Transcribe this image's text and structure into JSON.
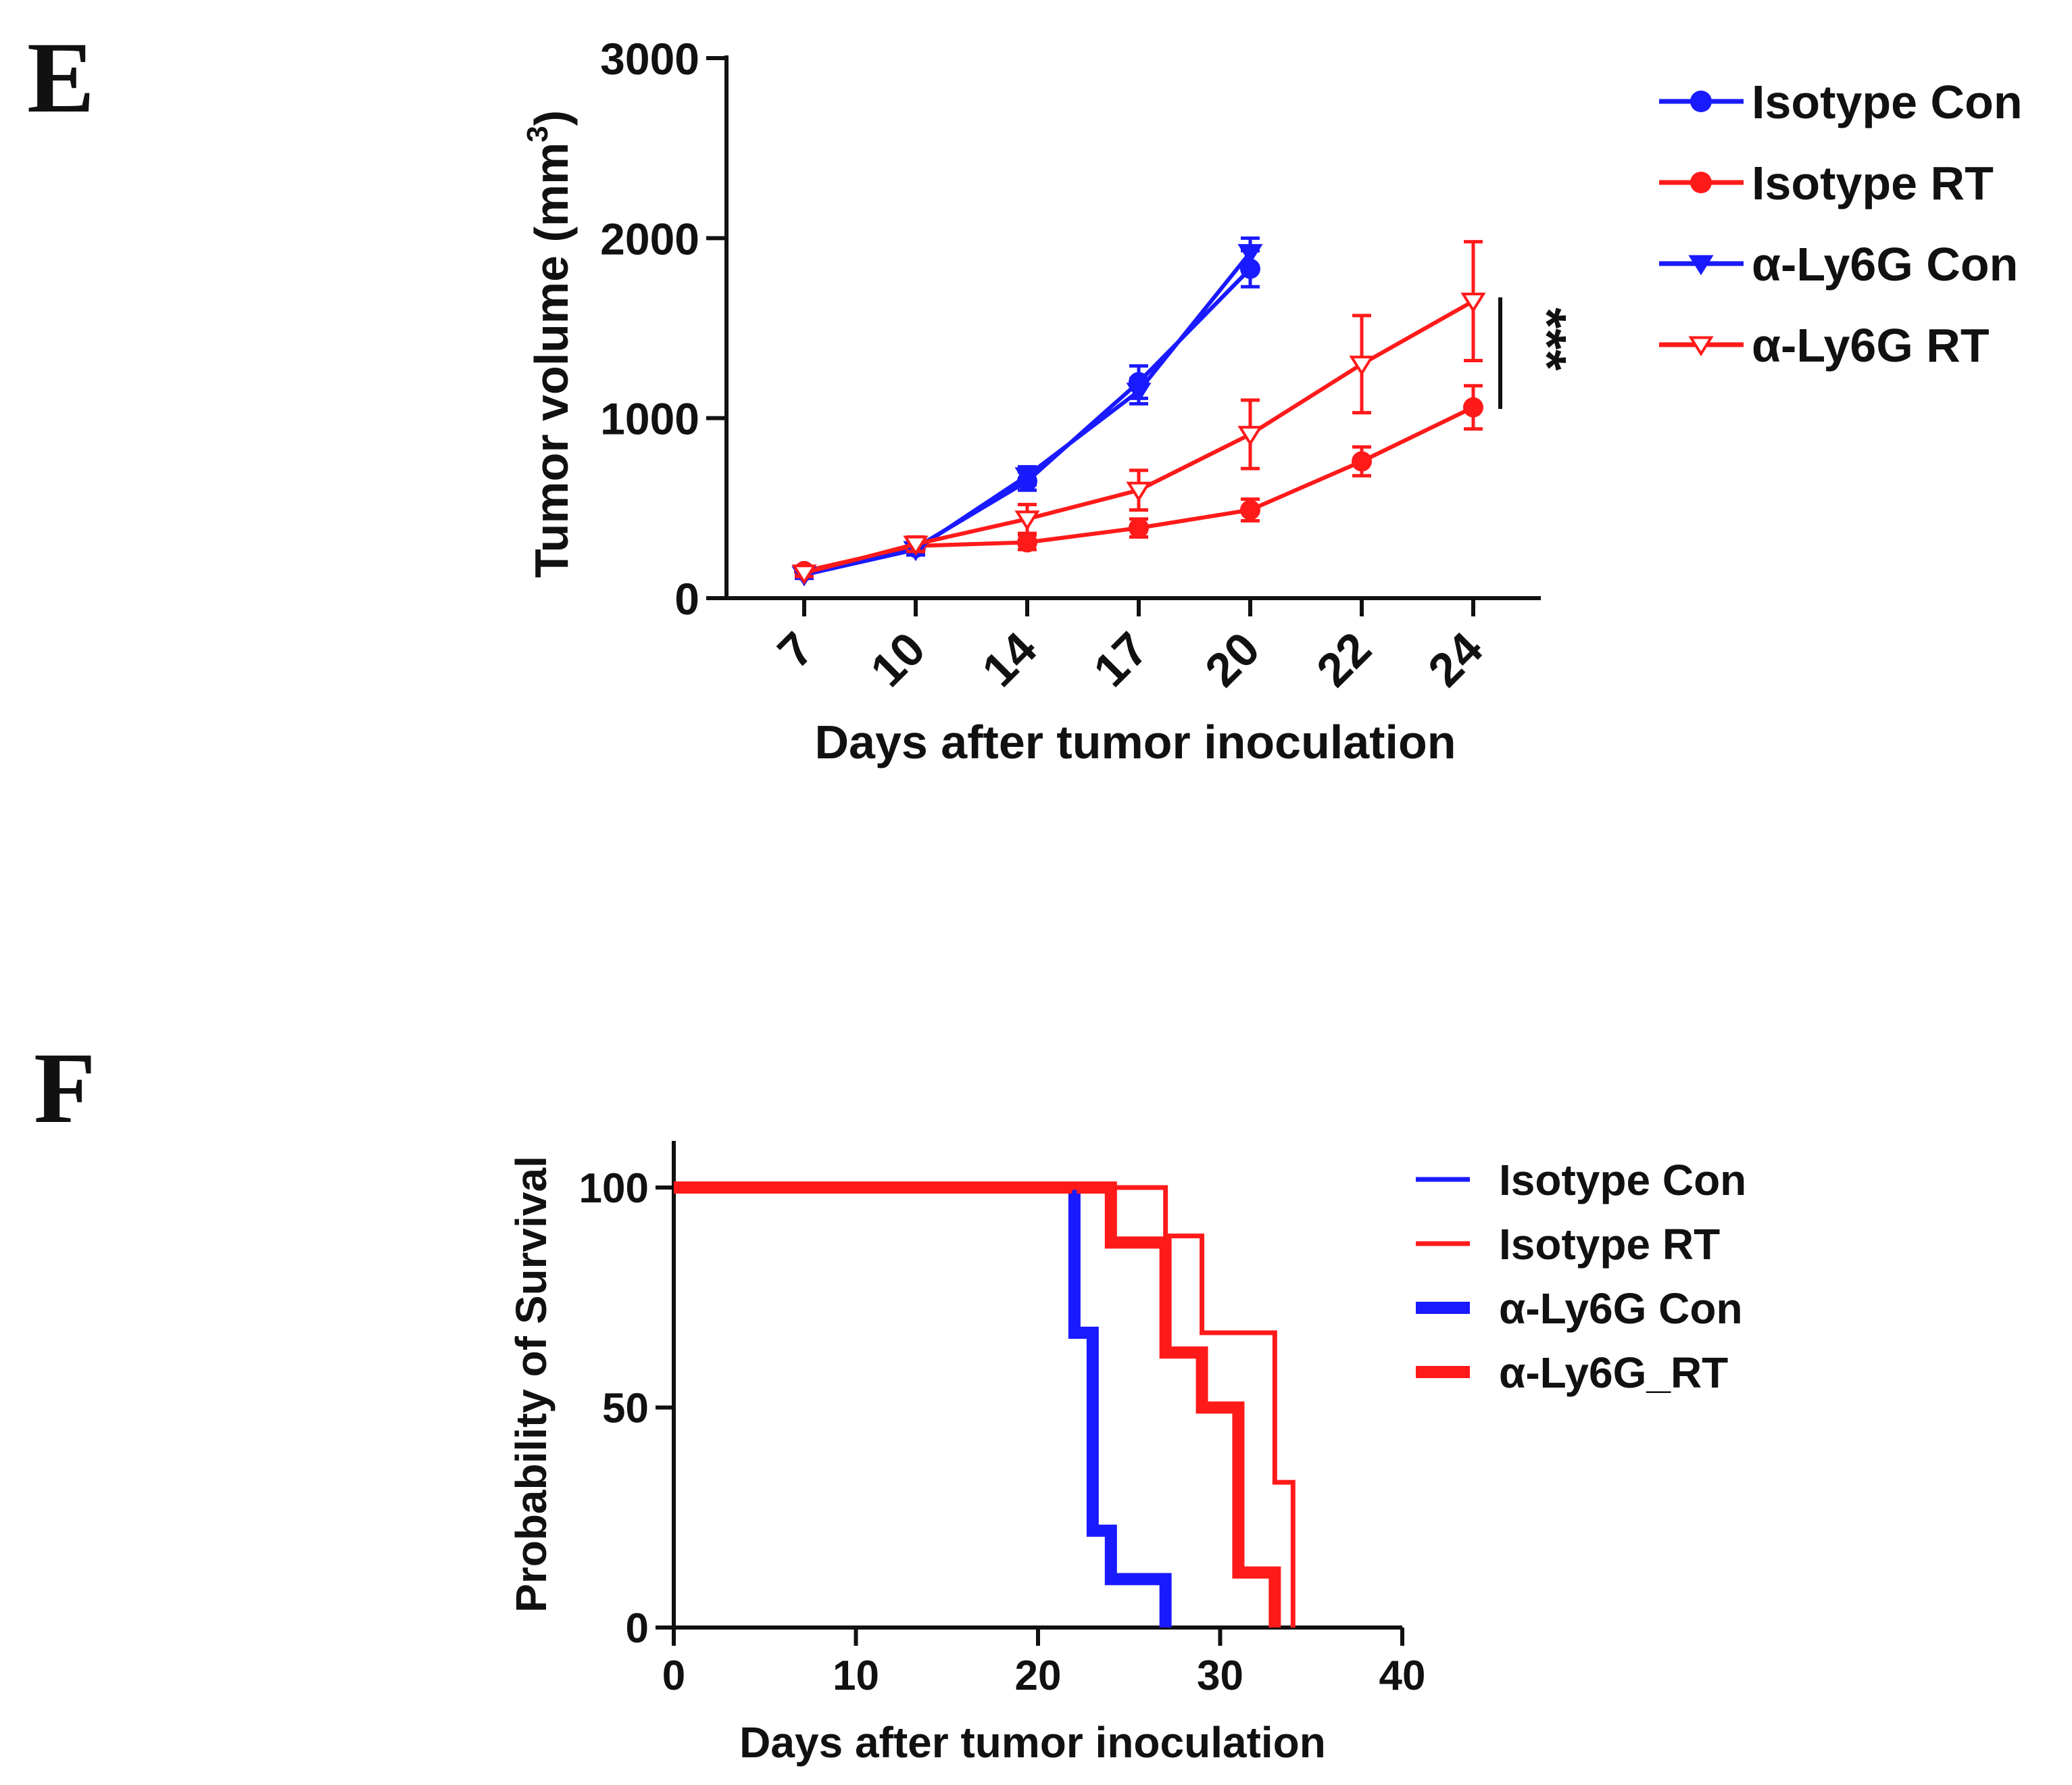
{
  "colors": {
    "blue": "#1a1aff",
    "red": "#ff1a1a",
    "axis": "#111111"
  },
  "chart_data": [
    {
      "panel": "E",
      "type": "line",
      "ylabel": "Tumor volume (mm",
      "ylabel_sup": "3",
      "ylabel_close": ")",
      "xlabel": "Days after tumor inoculation",
      "ylim": [
        0,
        3000
      ],
      "yticks": [
        "0",
        "1000",
        "2000",
        "3000"
      ],
      "ytick_values": [
        0,
        1000,
        2000,
        3000
      ],
      "categories": [
        "7",
        "10",
        "14",
        "17",
        "20",
        "22",
        "24"
      ],
      "significance": "***",
      "series": [
        {
          "name": "Isotype Con",
          "color": "#1a1aff",
          "marker": "circle",
          "values": [
            150,
            280,
            650,
            1200,
            1830,
            null,
            null
          ],
          "errors": [
            20,
            30,
            50,
            90,
            100,
            null,
            null
          ]
        },
        {
          "name": "Isotype RT",
          "color": "#ff1a1a",
          "marker": "circle",
          "values": [
            150,
            290,
            310,
            390,
            490,
            760,
            1060
          ],
          "errors": [
            20,
            40,
            40,
            50,
            60,
            80,
            120
          ]
        },
        {
          "name": "α-Ly6G Con",
          "color": "#1a1aff",
          "marker": "triangle-down",
          "values": [
            130,
            270,
            680,
            1150,
            1920,
            null,
            null
          ],
          "errors": [
            20,
            30,
            50,
            70,
            80,
            null,
            null
          ]
        },
        {
          "name": "α-Ly6G RT",
          "color": "#ff1a1a",
          "marker": "triangle-down-open",
          "values": [
            140,
            300,
            440,
            600,
            910,
            1300,
            1650
          ],
          "errors": [
            20,
            40,
            80,
            110,
            190,
            270,
            330
          ]
        }
      ]
    },
    {
      "panel": "F",
      "type": "line",
      "subtype": "survival-step",
      "ylabel": "Probability of Survival",
      "xlabel": "Days after tumor inoculation",
      "xlim": [
        0,
        40
      ],
      "ylim": [
        0,
        110
      ],
      "xticks": [
        "0",
        "10",
        "20",
        "30",
        "40"
      ],
      "xtick_values": [
        0,
        10,
        20,
        30,
        40
      ],
      "yticks": [
        "0",
        "50",
        "100"
      ],
      "ytick_values": [
        0,
        50,
        100
      ],
      "series": [
        {
          "name": "Isotype Con",
          "color": "#1a1aff",
          "weight": "thin",
          "steps": [
            [
              0,
              100
            ],
            [
              22,
              67
            ],
            [
              23,
              22
            ],
            [
              24,
              11
            ],
            [
              27,
              0
            ]
          ]
        },
        {
          "name": "Isotype RT",
          "color": "#ff1a1a",
          "weight": "thin",
          "steps": [
            [
              0,
              100
            ],
            [
              27,
              89
            ],
            [
              29,
              67
            ],
            [
              33,
              33
            ],
            [
              34,
              0
            ]
          ]
        },
        {
          "name": "α-Ly6G Con",
          "color": "#1a1aff",
          "weight": "thick",
          "steps": [
            [
              0,
              100
            ],
            [
              22,
              67
            ],
            [
              23,
              22
            ],
            [
              24,
              11
            ],
            [
              27,
              0
            ]
          ]
        },
        {
          "name": "α-Ly6G_RT",
          "color": "#ff1a1a",
          "weight": "thick",
          "steps": [
            [
              0,
              100
            ],
            [
              24,
              87.5
            ],
            [
              27,
              62.5
            ],
            [
              29,
              50
            ],
            [
              31,
              12.5
            ],
            [
              33,
              0
            ]
          ]
        }
      ]
    }
  ]
}
